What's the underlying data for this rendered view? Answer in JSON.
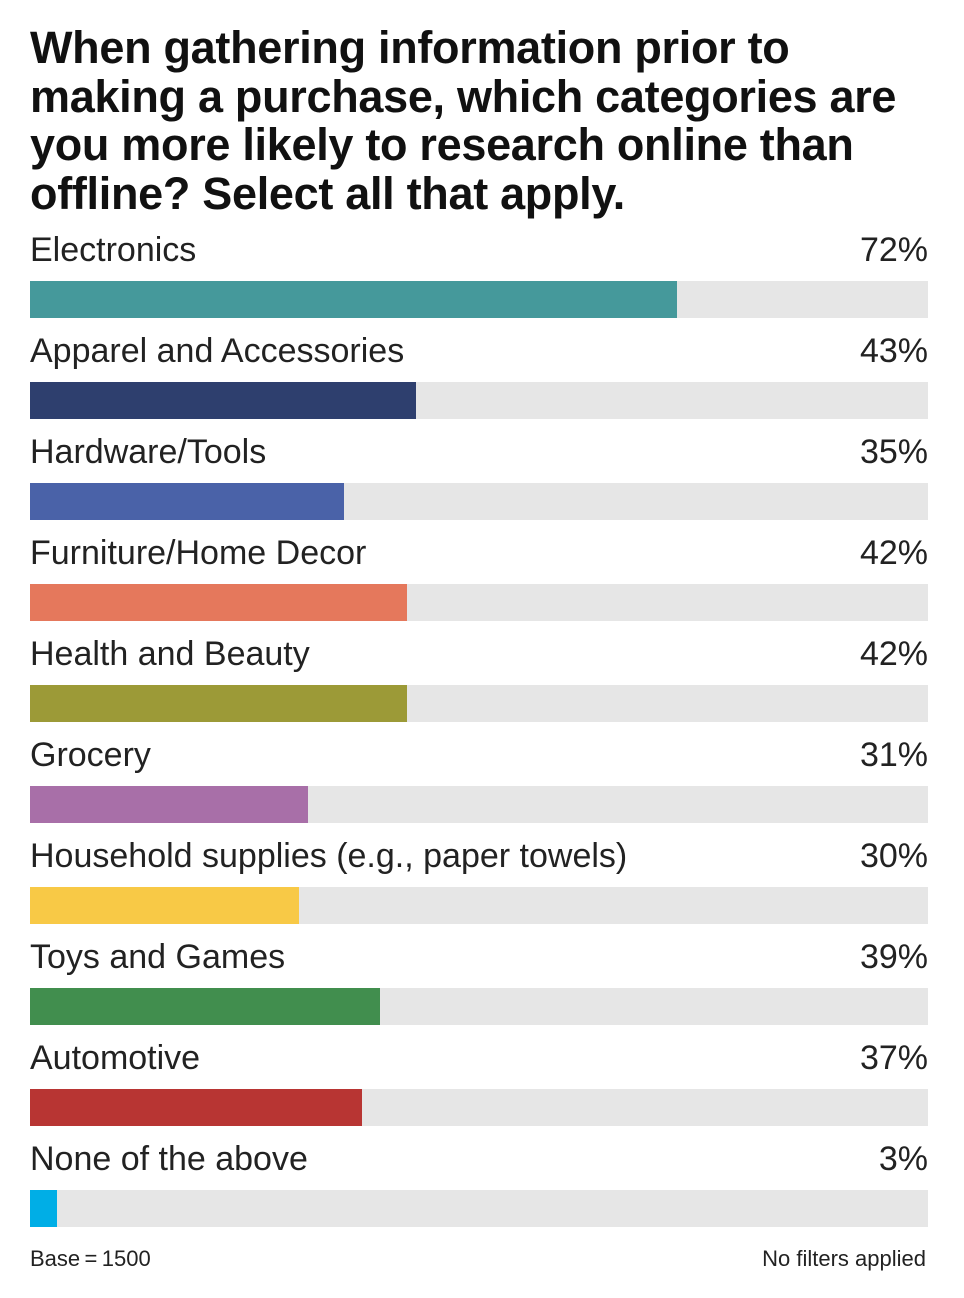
{
  "chart_data": {
    "type": "bar",
    "orientation": "horizontal",
    "title": "When gathering information prior to making a purchase, which categories are you more likely to research online than offline? Select all that apply.",
    "categories": [
      "Electronics",
      "Apparel and Accessories",
      "Hardware/Tools",
      "Furniture/Home Decor",
      "Health and Beauty",
      "Grocery",
      "Household supplies (e.g., paper towels)",
      "Toys and Games",
      "Automotive",
      "None of the above"
    ],
    "values": [
      72,
      43,
      35,
      42,
      42,
      31,
      30,
      39,
      37,
      3
    ],
    "value_labels": [
      "72%",
      "43%",
      "35%",
      "42%",
      "42%",
      "31%",
      "30%",
      "39%",
      "37%",
      "3%"
    ],
    "colors": [
      "#45999b",
      "#2e3f6e",
      "#4a62a8",
      "#e5785c",
      "#9c9a37",
      "#a86fa8",
      "#f8c946",
      "#418e4e",
      "#b83533",
      "#00aee6"
    ],
    "track_color": "#e6e6e6",
    "xlim": [
      0,
      100
    ],
    "grid": false
  },
  "footer": {
    "base": "Base = 1500",
    "filters": "No filters applied"
  }
}
